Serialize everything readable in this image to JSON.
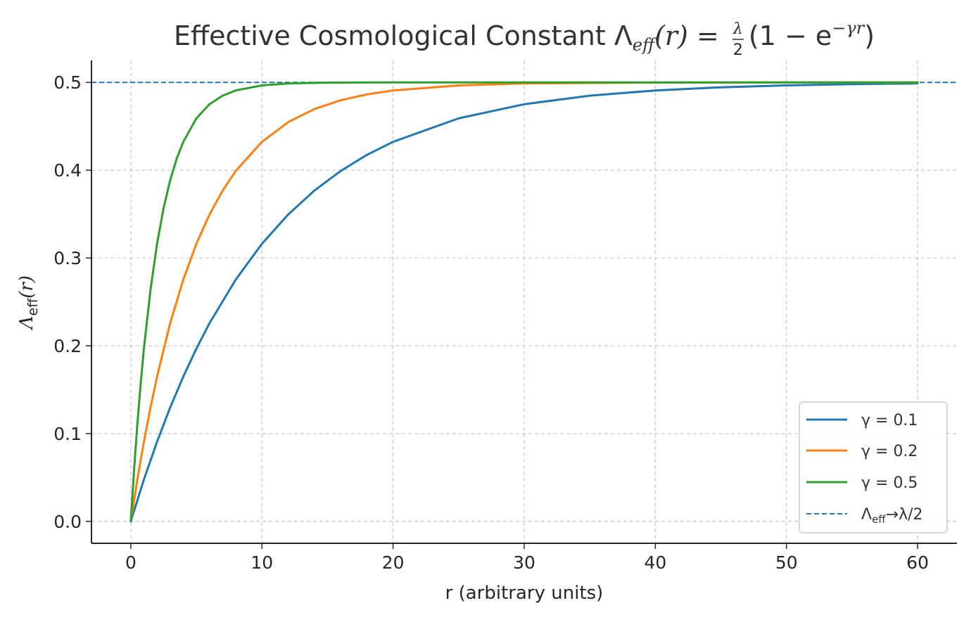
{
  "chart_data": {
    "type": "line",
    "title": {
      "text": "Effective Cosmological Constant Λ",
      "sub": "eff",
      "eq": "(r) = ",
      "frac_num": "λ",
      "frac_den": "2",
      "paren": "(1 − e",
      "sup": "−γr",
      "close": ")"
    },
    "xlabel": "r (arbitrary units)",
    "ylabel": {
      "main": "Λ",
      "sub": "eff",
      "rest": "(r)"
    },
    "xlim": [
      -3,
      63
    ],
    "ylim": [
      -0.025,
      0.525
    ],
    "xticks": [
      0,
      10,
      20,
      30,
      40,
      50,
      60
    ],
    "xtick_labels": [
      "0",
      "10",
      "20",
      "30",
      "40",
      "50",
      "60"
    ],
    "yticks": [
      0.0,
      0.1,
      0.2,
      0.3,
      0.4,
      0.5
    ],
    "ytick_labels": [
      "0.0",
      "0.1",
      "0.2",
      "0.3",
      "0.4",
      "0.5"
    ],
    "grid": true,
    "legend_position": "lower-right",
    "lambda_half": 0.5,
    "series": [
      {
        "name": "γ = 0.1",
        "color": "#1f77b4",
        "x": [
          0,
          1,
          2,
          3,
          4,
          5,
          6,
          8,
          10,
          12,
          14,
          16,
          18,
          20,
          25,
          30,
          35,
          40,
          45,
          50,
          55,
          60
        ],
        "y": [
          0,
          0.0476,
          0.0906,
          0.1296,
          0.1648,
          0.1967,
          0.2256,
          0.2753,
          0.3161,
          0.3494,
          0.3767,
          0.3991,
          0.4174,
          0.4323,
          0.459,
          0.4751,
          0.4849,
          0.4908,
          0.4944,
          0.4966,
          0.498,
          0.4988
        ]
      },
      {
        "name": "γ = 0.2",
        "color": "#ff7f0e",
        "x": [
          0,
          0.5,
          1,
          1.5,
          2,
          3,
          4,
          5,
          6,
          7,
          8,
          10,
          12,
          14,
          16,
          18,
          20,
          25,
          30,
          40,
          50,
          60
        ],
        "y": [
          0,
          0.0476,
          0.0906,
          0.1296,
          0.1648,
          0.2256,
          0.2753,
          0.3161,
          0.3494,
          0.3767,
          0.3991,
          0.4323,
          0.4546,
          0.4696,
          0.4796,
          0.4863,
          0.4908,
          0.4966,
          0.4988,
          0.4998,
          0.5,
          0.5
        ]
      },
      {
        "name": "γ = 0.5",
        "color": "#2ca02c",
        "x": [
          0,
          0.25,
          0.5,
          0.75,
          1,
          1.5,
          2,
          2.5,
          3,
          3.5,
          4,
          5,
          6,
          7,
          8,
          10,
          12,
          15,
          20,
          30,
          45,
          60
        ],
        "y": [
          0,
          0.0588,
          0.1106,
          0.1563,
          0.1967,
          0.2638,
          0.3161,
          0.3567,
          0.3884,
          0.4131,
          0.4323,
          0.459,
          0.4751,
          0.4849,
          0.4908,
          0.4966,
          0.4988,
          0.4997,
          0.5,
          0.5,
          0.5,
          0.5
        ]
      }
    ],
    "asymptote": {
      "y": 0.5,
      "color": "#1f77b4",
      "label_main": "Λ",
      "label_sub": "eff",
      "label_rest": "→λ/2"
    }
  }
}
